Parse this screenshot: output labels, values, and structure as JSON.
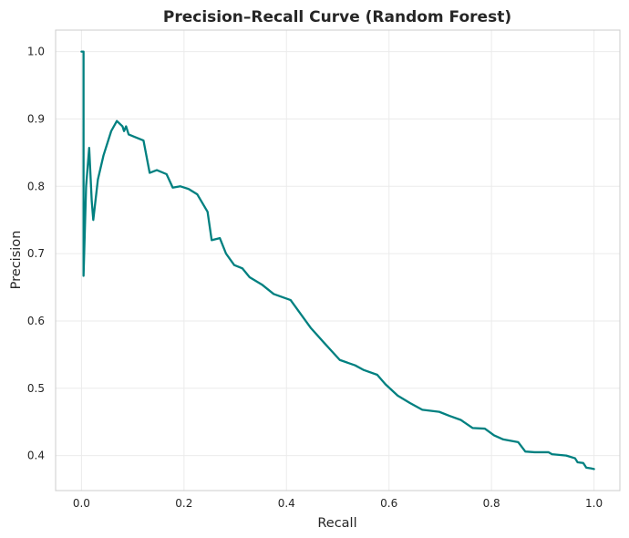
{
  "chart_data": {
    "type": "line",
    "title": "Precision–Recall Curve (Random Forest)",
    "xlabel": "Recall",
    "ylabel": "Precision",
    "xlim": [
      -0.0505,
      1.0505
    ],
    "ylim": [
      0.348,
      1.032
    ],
    "x_ticks": [
      0.0,
      0.2,
      0.4,
      0.6,
      0.8,
      1.0
    ],
    "x_tick_labels": [
      "0.0",
      "0.2",
      "0.4",
      "0.6",
      "0.8",
      "1.0"
    ],
    "y_ticks": [
      0.4,
      0.5,
      0.6,
      0.7,
      0.8,
      0.9,
      1.0
    ],
    "y_tick_labels": [
      "0.4",
      "0.5",
      "0.6",
      "0.7",
      "0.8",
      "0.9",
      "1.0"
    ],
    "grid": true,
    "line_color": "#008080",
    "series": [
      {
        "x": [
          0.0,
          0.004,
          0.004,
          0.009,
          0.015,
          0.02,
          0.023,
          0.032,
          0.043,
          0.058,
          0.069,
          0.08,
          0.083,
          0.087,
          0.092,
          0.105,
          0.121,
          0.133,
          0.147,
          0.166,
          0.178,
          0.193,
          0.209,
          0.226,
          0.246,
          0.254,
          0.27,
          0.282,
          0.298,
          0.314,
          0.328,
          0.352,
          0.375,
          0.408,
          0.427,
          0.447,
          0.474,
          0.504,
          0.534,
          0.551,
          0.577,
          0.593,
          0.617,
          0.641,
          0.665,
          0.698,
          0.718,
          0.74,
          0.763,
          0.787,
          0.805,
          0.823,
          0.852,
          0.866,
          0.884,
          0.911,
          0.918,
          0.946,
          0.963,
          0.968,
          0.979,
          0.985,
          0.994,
          1.0
        ],
        "y": [
          1.0,
          1.0,
          0.667,
          0.8,
          0.857,
          0.778,
          0.75,
          0.81,
          0.846,
          0.882,
          0.897,
          0.889,
          0.882,
          0.889,
          0.877,
          0.873,
          0.868,
          0.82,
          0.824,
          0.818,
          0.798,
          0.8,
          0.796,
          0.788,
          0.762,
          0.72,
          0.723,
          0.7,
          0.683,
          0.678,
          0.665,
          0.654,
          0.64,
          0.631,
          0.611,
          0.59,
          0.567,
          0.542,
          0.534,
          0.527,
          0.52,
          0.506,
          0.489,
          0.478,
          0.468,
          0.465,
          0.459,
          0.453,
          0.441,
          0.44,
          0.43,
          0.424,
          0.42,
          0.406,
          0.405,
          0.405,
          0.402,
          0.4,
          0.396,
          0.39,
          0.389,
          0.382,
          0.381,
          0.38
        ]
      }
    ]
  }
}
